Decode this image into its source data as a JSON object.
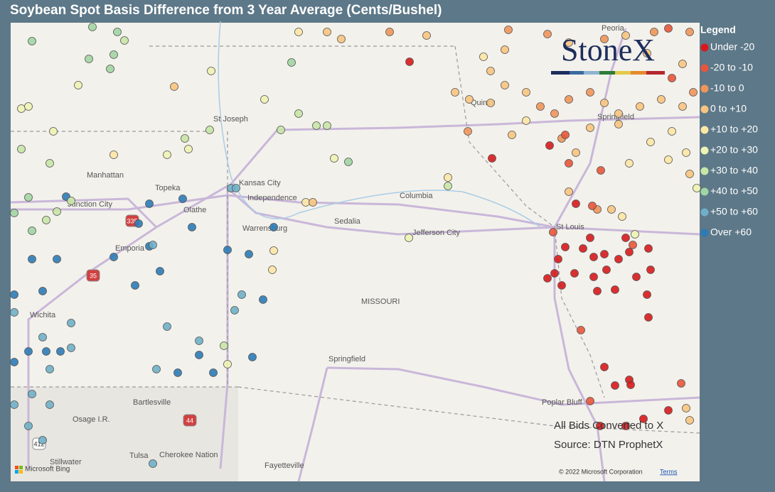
{
  "title": "Soybean Spot Basis Difference from 3 Year Average (Cents/Bushel)",
  "legend": {
    "title": "Legend",
    "items": [
      {
        "label": "Under -20",
        "color": "#d7191c"
      },
      {
        "label": "-20 to -10",
        "color": "#e8553a"
      },
      {
        "label": "-10 to 0",
        "color": "#f0955a"
      },
      {
        "label": "0 to +10",
        "color": "#f8c47f"
      },
      {
        "label": "+10 to +20",
        "color": "#fde7a5"
      },
      {
        "label": "+20 to +30",
        "color": "#eef3b4"
      },
      {
        "label": "+30 to +40",
        "color": "#c8e6a6"
      },
      {
        "label": "+40 to +50",
        "color": "#a2d5a3"
      },
      {
        "label": "+50 to +60",
        "color": "#6fb0c8"
      },
      {
        "label": "Over +60",
        "color": "#2c7bb6"
      }
    ]
  },
  "logo": "StoneX",
  "map_labels": [
    "St Joseph",
    "Manhattan",
    "Topeka",
    "Kansas City",
    "Independence",
    "Olathe",
    "Junction City",
    "Emporia",
    "Warrensburg",
    "Sedalia",
    "Columbia",
    "Jefferson City",
    "St Louis",
    "MISSOURI",
    "Springfield",
    "Springfield",
    "Quincy",
    "Peoria",
    "Bartlesville",
    "Osage I.R.",
    "Tulsa",
    "Cherokee Nation",
    "Stillwater",
    "Fayetteville",
    "Poplar Bluff",
    "Wichita"
  ],
  "highways": [
    "335",
    "35",
    "44",
    "412"
  ],
  "annotations": [
    "All Bids Converted to X",
    "Source: DTN ProphetX"
  ],
  "attribution": {
    "bing": "Microsoft Bing",
    "copyright": "© 2022 Microsoft Corporation",
    "terms": "Terms"
  }
}
